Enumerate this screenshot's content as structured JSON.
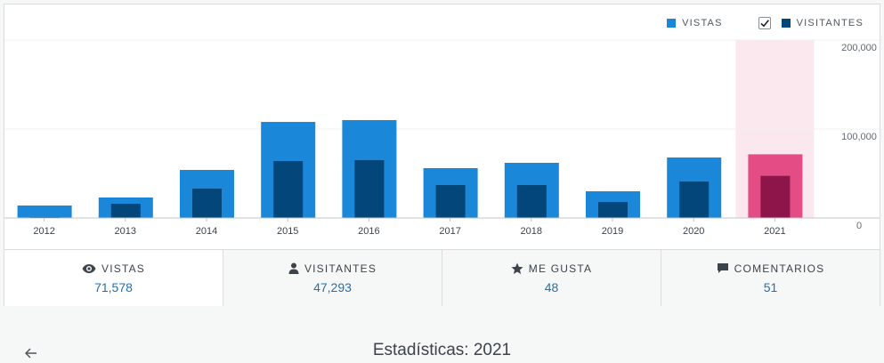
{
  "legend": {
    "views_label": "VISTAS",
    "visitors_label": "VISITANTES",
    "visitors_checked": true,
    "colors": {
      "views": "#1b87d8",
      "visitors": "#03477a"
    }
  },
  "chart_data": {
    "type": "bar",
    "categories": [
      "2012",
      "2013",
      "2014",
      "2015",
      "2016",
      "2017",
      "2018",
      "2019",
      "2020",
      "2021"
    ],
    "series": [
      {
        "name": "VISTAS",
        "values": [
          14000,
          23000,
          54000,
          108000,
          110000,
          56000,
          62000,
          30000,
          68000,
          71578
        ]
      },
      {
        "name": "VISITANTES",
        "values": [
          1000,
          16000,
          33000,
          64000,
          65000,
          37000,
          37000,
          18000,
          41000,
          47293
        ]
      }
    ],
    "ylim": [
      0,
      200000
    ],
    "yticks": [
      "200,000",
      "100,000",
      "0"
    ],
    "ytick_values": [
      200000,
      100000,
      0
    ],
    "highlighted_category": "2021",
    "highlight_colors": {
      "views": "#e34c84",
      "visitors": "#8d1549",
      "band": "#fbe8ee"
    },
    "grid": true
  },
  "tabs": [
    {
      "label": "VISTAS",
      "value": "71,578",
      "icon": "eye-icon",
      "active": true
    },
    {
      "label": "VISITANTES",
      "value": "47,293",
      "icon": "person-icon",
      "active": false
    },
    {
      "label": "ME GUSTA",
      "value": "48",
      "icon": "star-icon",
      "active": false
    },
    {
      "label": "COMENTARIOS",
      "value": "51",
      "icon": "comment-icon",
      "active": false
    }
  ],
  "footer": {
    "title": "Estadísticas: 2021",
    "back_icon": "arrow-left-icon"
  }
}
